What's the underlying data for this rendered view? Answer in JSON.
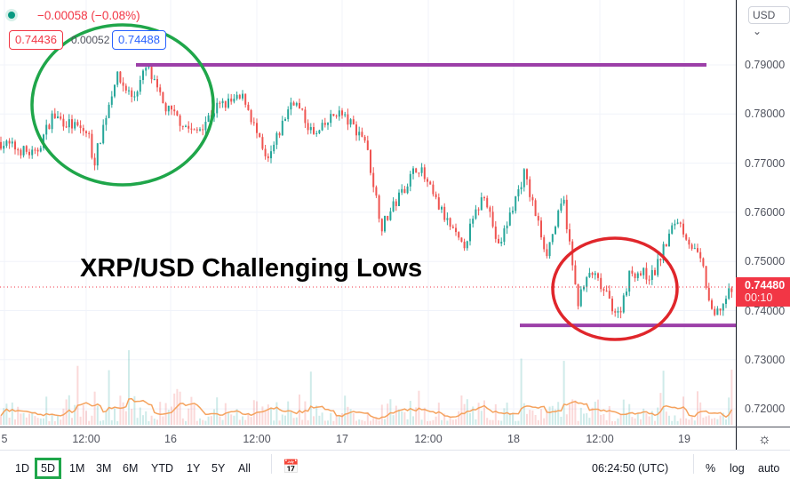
{
  "legend": {
    "change": "−0.00058 (−0.08%)",
    "bid": "0.74436",
    "spread": "0.00052",
    "ask": "0.74488",
    "status_color": "#089981"
  },
  "currency": "USD",
  "annotation_title": "XRP/USD Challenging Lows",
  "current_price": {
    "value": "0.74480",
    "countdown": "00:10",
    "color": "#f23645"
  },
  "price_ticks": [
    "0.79000",
    "0.78000",
    "0.77000",
    "0.76000",
    "0.75000",
    "0.74000",
    "0.73000",
    "0.72000"
  ],
  "time_ticks": [
    "5",
    "12:00",
    "16",
    "12:00",
    "17",
    "12:00",
    "18",
    "12:00",
    "19"
  ],
  "ranges": [
    "1D",
    "5D",
    "1M",
    "3M",
    "6M",
    "YTD",
    "1Y",
    "5Y",
    "All"
  ],
  "selected_range": "5D",
  "clock": "06:24:50 (UTC)",
  "scale_options": {
    "percent": "%",
    "log": "log",
    "auto": "auto"
  },
  "icons": {
    "goto_date": "calendar-arrow-icon",
    "settings": "gear-icon",
    "currency_dropdown": "chevron-down-icon"
  },
  "colors": {
    "up": "#26a69a",
    "down": "#ef5350",
    "support_resistance": "#9c3fa8",
    "highlight_high": "#1fa64a",
    "highlight_low": "#e0262b",
    "volume_ma": "#f5a25d"
  },
  "chart_data": {
    "type": "candlestick",
    "ylim": [
      0.7165,
      0.7968
    ],
    "x_unit": "day of month",
    "price_path": [
      [
        14.97,
        0.7743
      ],
      [
        15.18,
        0.7716
      ],
      [
        15.28,
        0.7797
      ],
      [
        15.49,
        0.776
      ],
      [
        15.52,
        0.7697
      ],
      [
        15.65,
        0.7878
      ],
      [
        15.75,
        0.7833
      ],
      [
        15.83,
        0.7896
      ],
      [
        15.93,
        0.7815
      ],
      [
        16.11,
        0.776
      ],
      [
        16.24,
        0.7815
      ],
      [
        16.4,
        0.7833
      ],
      [
        16.53,
        0.7697
      ],
      [
        16.68,
        0.7833
      ],
      [
        16.81,
        0.7752
      ],
      [
        16.94,
        0.7806
      ],
      [
        17.1,
        0.7752
      ],
      [
        17.2,
        0.7571
      ],
      [
        17.41,
        0.7697
      ],
      [
        17.51,
        0.7625
      ],
      [
        17.67,
        0.7526
      ],
      [
        17.8,
        0.7643
      ],
      [
        17.88,
        0.7526
      ],
      [
        18.03,
        0.7679
      ],
      [
        18.16,
        0.7517
      ],
      [
        18.26,
        0.7625
      ],
      [
        18.34,
        0.7417
      ],
      [
        18.42,
        0.748
      ],
      [
        18.58,
        0.739
      ],
      [
        18.65,
        0.748
      ],
      [
        18.78,
        0.7471
      ],
      [
        18.92,
        0.7589
      ],
      [
        19.07,
        0.749
      ],
      [
        19.13,
        0.7381
      ],
      [
        19.25,
        0.7448
      ]
    ],
    "resistance": 0.79,
    "support": 0.737
  }
}
